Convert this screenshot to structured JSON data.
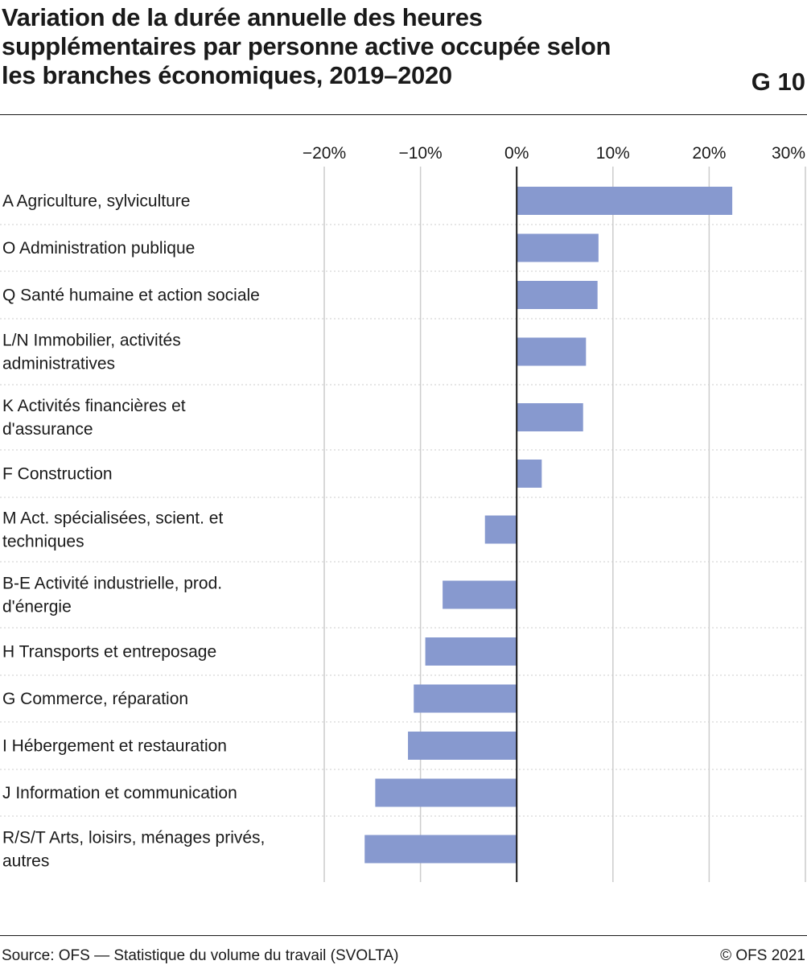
{
  "header": {
    "title": "Variation de la durée annuelle des heures supplémentaires par personne active occupée selon les branches économiques, 2019–2020",
    "graphic_number": "G 10"
  },
  "footer": {
    "source": "Source: OFS — Statistique du volume du travail (SVOLTA)",
    "copyright": "© OFS 2021"
  },
  "colors": {
    "bar": "#8799cf",
    "grid": "#cccccc",
    "zero_line": "#1a1a1a"
  },
  "chart_data": {
    "type": "bar",
    "orientation": "horizontal",
    "categories": [
      [
        "A Agriculture, sylviculture"
      ],
      [
        "O Administration publique"
      ],
      [
        "Q Santé humaine et action sociale"
      ],
      [
        "L/N Immobilier, activités",
        "administratives"
      ],
      [
        "K Activités financières et",
        "d'assurance"
      ],
      [
        "F Construction"
      ],
      [
        "M Act. spécialisées, scient. et",
        "techniques"
      ],
      [
        "B-E Activité industrielle, prod.",
        "d'énergie"
      ],
      [
        "H Transports et entreposage"
      ],
      [
        "G Commerce, réparation"
      ],
      [
        "I Hébergement et restauration"
      ],
      [
        "J Information et communication"
      ],
      [
        "R/S/T Arts, loisirs, ménages privés,",
        "autres"
      ]
    ],
    "values": [
      22.4,
      8.5,
      8.4,
      7.2,
      6.9,
      2.6,
      -3.3,
      -7.7,
      -9.5,
      -10.7,
      -11.3,
      -14.7,
      -15.8
    ],
    "xlim": [
      -20,
      30
    ],
    "xticks": [
      -20,
      -10,
      0,
      10,
      20,
      30
    ],
    "xtick_labels": [
      "−20%",
      "−10%",
      "0%",
      "10%",
      "20%",
      "30%"
    ],
    "grid": true,
    "legend": "none"
  }
}
